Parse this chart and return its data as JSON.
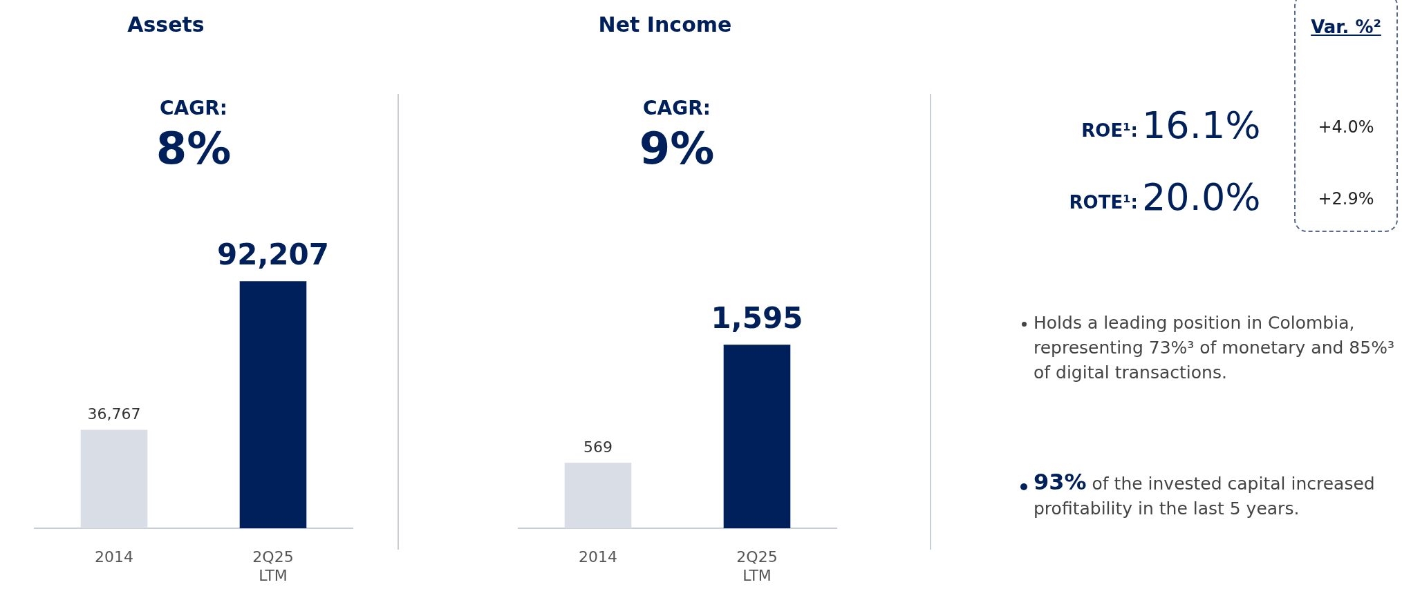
{
  "chart_data": [
    {
      "type": "bar",
      "title": "Assets",
      "annotations": [
        "CAGR:",
        "8%"
      ],
      "categories": [
        "2014",
        "2Q25 LTM"
      ],
      "values": [
        36767,
        92207
      ],
      "colors": [
        "#d9dee6",
        "#00205b"
      ],
      "value_labels": [
        "36,767",
        "92,207"
      ]
    },
    {
      "type": "bar",
      "title": "Net Income",
      "annotations": [
        "CAGR:",
        "9%"
      ],
      "categories": [
        "2014",
        "2Q25 LTM"
      ],
      "values": [
        569,
        1595
      ],
      "colors": [
        "#d9dee6",
        "#00205b"
      ],
      "value_labels": [
        "569",
        "1,595"
      ]
    },
    {
      "type": "other",
      "title": "Var. %²",
      "annotations": [
        "ROE¹:",
        "16.1%",
        "+4.0%",
        "ROTE¹:",
        "20.0%",
        "+2.9%",
        "Holds a leading position in Colombia, representing 73%³ of monetary and 85%³ of digital transactions.",
        "93%",
        "of the invested capital increased profitability in the last 5 years."
      ]
    }
  ]
}
